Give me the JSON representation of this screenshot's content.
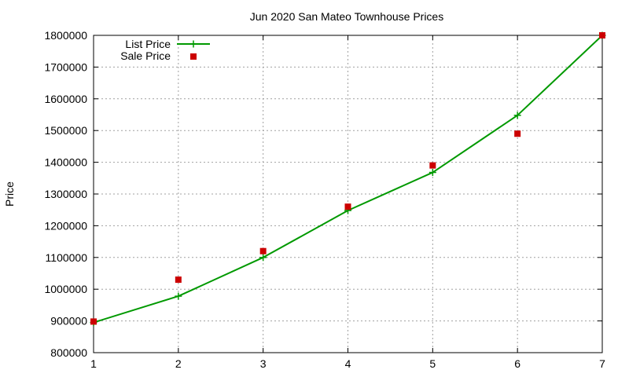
{
  "chart_data": {
    "type": "line",
    "title": "Jun 2020 San Mateo Townhouse Prices",
    "xlabel": "",
    "ylabel": "Price",
    "xlim": [
      1,
      7
    ],
    "ylim": [
      800000,
      1800000
    ],
    "x_ticks": [
      "1",
      "2",
      "3",
      "4",
      "5",
      "6",
      "7"
    ],
    "y_ticks": [
      "800000",
      "900000",
      "1000000",
      "1100000",
      "1200000",
      "1300000",
      "1400000",
      "1500000",
      "1600000",
      "1700000",
      "1800000"
    ],
    "grid": true,
    "legend_position": "top-left",
    "x": [
      1,
      2,
      3,
      4,
      5,
      6,
      7
    ],
    "series": [
      {
        "name": "List Price",
        "style": "line-with-plus-markers",
        "color": "#009900",
        "values": [
          895000,
          978000,
          1100000,
          1248000,
          1368000,
          1548000,
          1800000
        ]
      },
      {
        "name": "Sale Price",
        "style": "square-markers",
        "color": "#cc0000",
        "values": [
          898000,
          1030000,
          1120000,
          1260000,
          1390000,
          1490000,
          1800000
        ]
      }
    ]
  }
}
